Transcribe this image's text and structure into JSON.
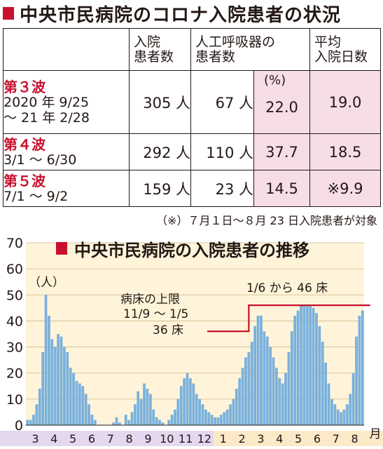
{
  "header": {
    "title": "中央市民病院のコロナ入院患者の状況"
  },
  "table": {
    "columns": [
      "入院患者数",
      "人工呼吸器の患者数",
      "平均入院日数"
    ],
    "column_lines": [
      [
        "入院",
        "患者数"
      ],
      [
        "人工呼吸器の",
        "患者数"
      ],
      [
        "平均",
        "入院日数"
      ]
    ],
    "percent_unit": "(%)",
    "rows": [
      {
        "wave": "第３波",
        "period_lines": [
          "2020 年 9/25",
          "～ 21 年 2/28"
        ],
        "patients": "305 人",
        "ventilator": "67 人",
        "ventilator_pct": "22.0",
        "avg_days": "19.0"
      },
      {
        "wave": "第４波",
        "period_lines": [
          "3/1 ～ 6/30"
        ],
        "patients": "292 人",
        "ventilator": "110 人",
        "ventilator_pct": "37.7",
        "avg_days": "18.5"
      },
      {
        "wave": "第５波",
        "period_lines": [
          "7/1 ～ 9/2"
        ],
        "patients": "159 人",
        "ventilator": "23 人",
        "ventilator_pct": "14.5",
        "avg_days": "※9.9"
      }
    ],
    "note": "（※）７月１日～８月 23 日入院患者が対象"
  },
  "chart_data": {
    "type": "bar",
    "title": "中央市民病院の入院患者の推移",
    "ylabel": "（人）",
    "xlabel": "月",
    "ylim": [
      0,
      70
    ],
    "yticks": [
      0,
      10,
      20,
      30,
      40,
      50,
      60,
      70
    ],
    "grid": true,
    "x_months": [
      "3",
      "4",
      "5",
      "6",
      "7",
      "8",
      "9",
      "10",
      "11",
      "12",
      "1",
      "2",
      "3",
      "4",
      "5",
      "6",
      "7",
      "8"
    ],
    "x_month_highlight_from": 10,
    "x_band_color": "#e3d8ee",
    "x_band_highlight_color": "#fbe9c8",
    "bar_color": "#7ab1dc",
    "plot_bg": "#fff4d9",
    "limit_color": "#c8102e",
    "weekly_values": [
      2,
      2,
      4,
      8,
      14,
      28,
      50,
      42,
      33,
      30,
      35,
      34,
      30,
      28,
      22,
      20,
      17,
      16,
      15,
      12,
      8,
      4,
      2,
      0,
      0,
      0,
      0,
      0,
      1,
      3,
      1,
      0,
      4,
      2,
      5,
      8,
      13,
      10,
      16,
      14,
      12,
      6,
      3,
      2,
      1,
      0,
      2,
      4,
      6,
      10,
      15,
      18,
      20,
      18,
      16,
      12,
      10,
      8,
      6,
      5,
      4,
      3,
      3,
      4,
      5,
      6,
      8,
      10,
      14,
      18,
      22,
      26,
      28,
      32,
      38,
      42,
      42,
      36,
      34,
      30,
      26,
      22,
      18,
      16,
      20,
      28,
      36,
      42,
      44,
      46,
      46,
      46,
      46,
      45,
      43,
      38,
      32,
      24,
      16,
      10,
      8,
      6,
      5,
      6,
      8,
      12,
      20,
      34,
      42,
      44
    ],
    "limit_line": [
      {
        "x": 59,
        "y": 36
      },
      {
        "x": 72.5,
        "y": 36
      },
      {
        "x": 72.5,
        "y": 46
      },
      {
        "x": 112,
        "y": 46
      }
    ],
    "annotations": {
      "bed_limit": "病床の上限",
      "period": "11/9 ～ 1/5",
      "beds_36": "36 床",
      "beds_46": "1/6 から 46 床"
    }
  }
}
